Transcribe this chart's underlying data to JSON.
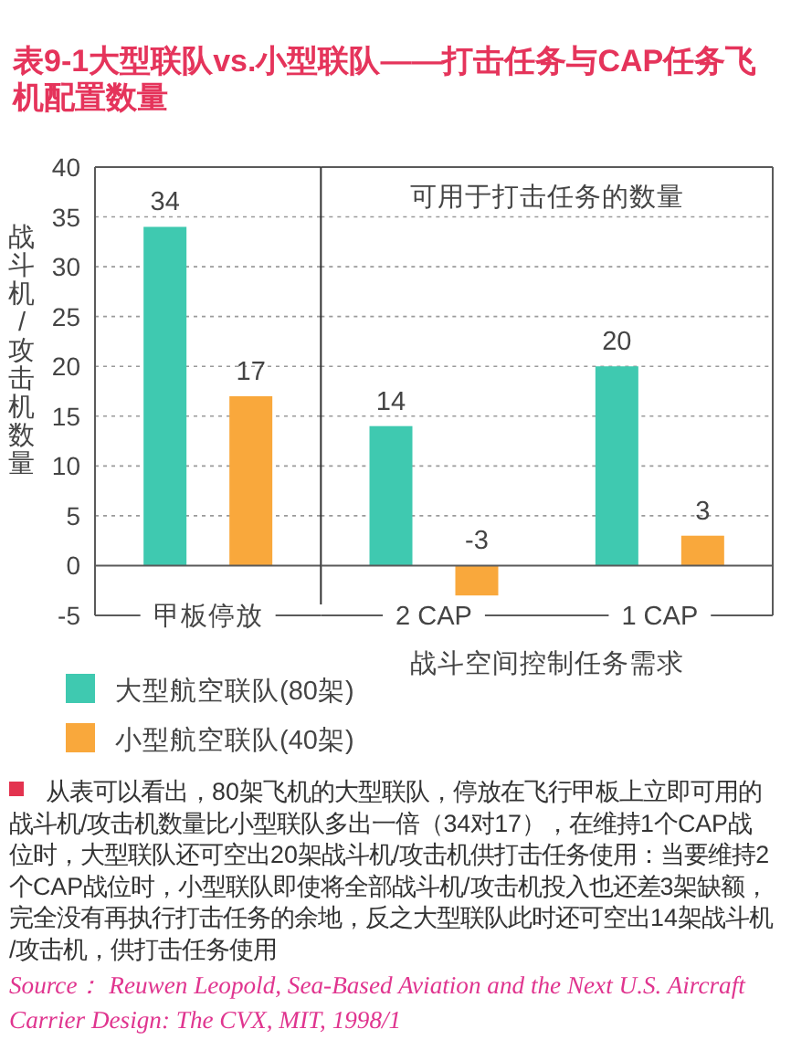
{
  "chart_data": [
    {
      "type": "bar",
      "title": "表9-1大型联队vs.小型联队——打击任务与CAP任务飞机配置数量",
      "ylabel": "战斗机/攻击机数量",
      "categories": [
        "甲板停放"
      ],
      "series": [
        {
          "name": "大型航空联队(80架)",
          "color": "#3fc9b0",
          "values": [
            34
          ]
        },
        {
          "name": "小型航空联队(40架)",
          "color": "#f9a83c",
          "values": [
            17
          ]
        }
      ],
      "ylim": [
        -5,
        40
      ],
      "yticks": [
        -5,
        0,
        5,
        10,
        15,
        20,
        25,
        30,
        35,
        40
      ],
      "grid": "y",
      "legend": "bottom",
      "data_labels": true,
      "annotations": [
        "从表可以看出，80架飞机的大型联队，停放在飞行甲板上立即可用的战斗机/攻击机数量比小型联队多出一倍（34对17），在维持1个CAP战位时，大型联队还可空出20架战斗机/攻击机供打击任务使用：当要维持2个CAP战位时，小型联队即使将全部战斗机/攻击机投入也还差3架缺额，完全没有再执行打击任务的余地，反之大型联队此时还可空出14架战斗机/攻击机，供打击任务使用",
        "Source： Reuwen Leopold, Sea-Based Aviation and the Next U.S. Aircraft Carrier Design: The CVX, MIT, 1998/1"
      ]
    },
    {
      "type": "bar",
      "xlabel": "战斗空间控制任务需求",
      "categories": [
        "2 CAP",
        "1 CAP"
      ],
      "series": [
        {
          "color": "#3fc9b0",
          "values": [
            14,
            20
          ]
        },
        {
          "color": "#f9a83c",
          "values": [
            -3,
            3
          ]
        }
      ],
      "ylim": [
        -5,
        40
      ],
      "yticks": [
        -5,
        0,
        5,
        10,
        15,
        20,
        25,
        30,
        35,
        40
      ],
      "grid": "y",
      "tick_labels": "x",
      "data_labels": true,
      "annotations": [
        "可用于打击任务的数量"
      ]
    }
  ]
}
